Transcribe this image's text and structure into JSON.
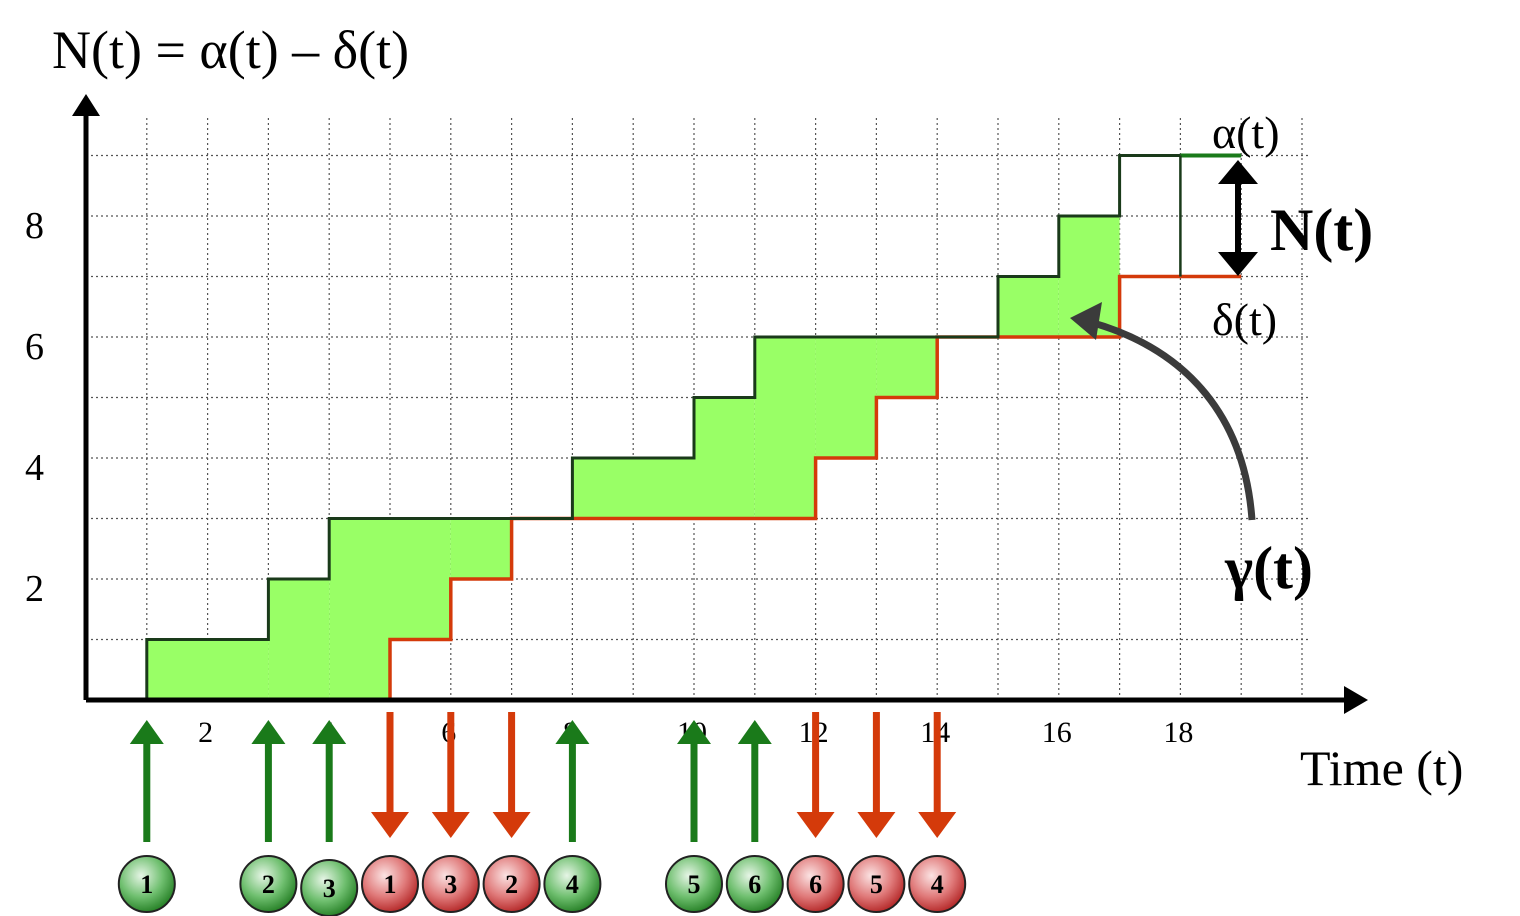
{
  "title": "N(t) = α(t) – δ(t)",
  "x_axis_label": "Time (t)",
  "x_ticks": [
    "2",
    "4",
    "6",
    "8",
    "10",
    "12",
    "14",
    "16",
    "18"
  ],
  "y_ticks": [
    "2",
    "4",
    "6",
    "8"
  ],
  "labels": {
    "alpha": "α(t)",
    "delta": "δ(t)",
    "n": "N(t)",
    "gamma": "γ(t)"
  },
  "colors": {
    "arrival": "#1a7a1a",
    "departure": "#d43a0a",
    "fill": "#99ff66",
    "grid": "#555555"
  },
  "chart_data": {
    "type": "step-area",
    "x_range": [
      0,
      20
    ],
    "y_range": [
      0,
      9
    ],
    "grid_step": 1,
    "alpha_steps": [
      {
        "t": 1,
        "value": 1
      },
      {
        "t": 3,
        "value": 2
      },
      {
        "t": 4,
        "value": 3
      },
      {
        "t": 8,
        "value": 4
      },
      {
        "t": 10,
        "value": 5
      },
      {
        "t": 11,
        "value": 6
      },
      {
        "t": 15,
        "value": 7
      },
      {
        "t": 16,
        "value": 8
      },
      {
        "t": 17,
        "value": 9
      }
    ],
    "delta_steps": [
      {
        "t": 5,
        "value": 1
      },
      {
        "t": 6,
        "value": 2
      },
      {
        "t": 7,
        "value": 3
      },
      {
        "t": 12,
        "value": 4
      },
      {
        "t": 13,
        "value": 5
      },
      {
        "t": 14,
        "value": 6
      },
      {
        "t": 17,
        "value": 7
      }
    ],
    "t_end": 19,
    "events": [
      {
        "t": 1,
        "type": "arrival",
        "id": "1"
      },
      {
        "t": 3,
        "type": "arrival",
        "id": "2"
      },
      {
        "t": 4,
        "type": "arrival",
        "id": "3"
      },
      {
        "t": 5,
        "type": "departure",
        "id": "1"
      },
      {
        "t": 6,
        "type": "departure",
        "id": "3"
      },
      {
        "t": 7,
        "type": "departure",
        "id": "2"
      },
      {
        "t": 8,
        "type": "arrival",
        "id": "4"
      },
      {
        "t": 10,
        "type": "arrival",
        "id": "5"
      },
      {
        "t": 11,
        "type": "arrival",
        "id": "6"
      },
      {
        "t": 12,
        "type": "departure",
        "id": "6"
      },
      {
        "t": 13,
        "type": "departure",
        "id": "5"
      },
      {
        "t": 14,
        "type": "departure",
        "id": "4"
      }
    ]
  }
}
